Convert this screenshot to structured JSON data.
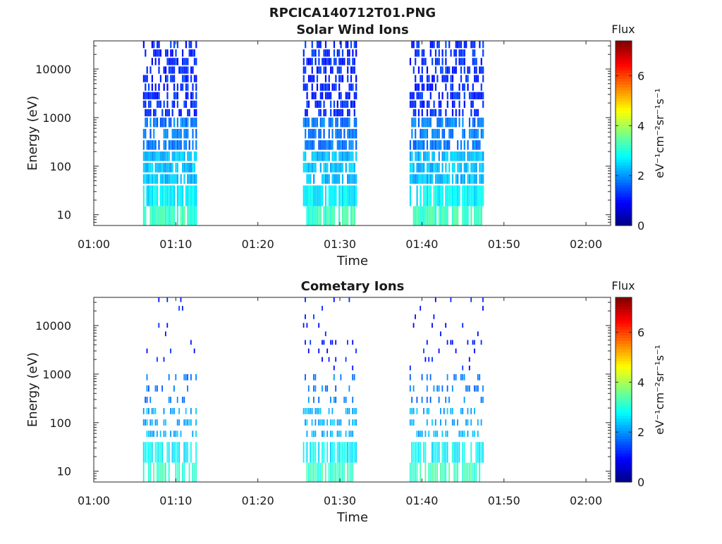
{
  "figure": {
    "title": "RPCICA140712T01.PNG"
  },
  "colors": {
    "axis": "#262626",
    "colormap": [
      "#00007f",
      "#0000ff",
      "#007fff",
      "#00ffff",
      "#7fff7f",
      "#ffff00",
      "#ff7f00",
      "#ff0000",
      "#7f0000"
    ]
  },
  "chart_data": [
    {
      "type": "heatmap",
      "title": "Solar Wind Ions",
      "xlabel": "Time",
      "ylabel": "Energy (eV)",
      "x_ticks": [
        "01:00",
        "01:10",
        "01:20",
        "01:30",
        "01:40",
        "01:50",
        "02:00"
      ],
      "y_ticks": [
        "10",
        "100",
        "1000",
        "10000"
      ],
      "y_scale": "log",
      "colorbar": {
        "title": "Flux",
        "label": "eV⁻¹cm⁻²sr⁻¹s⁻¹",
        "ticks": [
          "0",
          "2",
          "4",
          "6"
        ],
        "range": [
          0,
          7.4
        ]
      },
      "intervals": [
        {
          "start": "01:06",
          "end": "01:12.5",
          "max_energy_eV": 38000
        },
        {
          "start": "01:25.5",
          "end": "01:32",
          "max_energy_eV": 38000
        },
        {
          "start": "01:38.5",
          "end": "01:47.5",
          "max_energy_eV": 38000
        }
      ],
      "flux_by_energy_band": [
        {
          "energy_eV": [
            6,
            15
          ],
          "flux": 3.2
        },
        {
          "energy_eV": [
            15,
            40
          ],
          "flux": 2.7
        },
        {
          "energy_eV": [
            40,
            200
          ],
          "flux": 2.3
        },
        {
          "energy_eV": [
            200,
            1000
          ],
          "flux": 1.8
        },
        {
          "energy_eV": [
            1000,
            38000
          ],
          "flux": 1.2
        }
      ],
      "density": "dense"
    },
    {
      "type": "heatmap",
      "title": "Cometary Ions",
      "xlabel": "Time",
      "ylabel": "Energy (eV)",
      "x_ticks": [
        "01:00",
        "01:10",
        "01:20",
        "01:30",
        "01:40",
        "01:50",
        "02:00"
      ],
      "y_ticks": [
        "10",
        "100",
        "1000",
        "10000"
      ],
      "y_scale": "log",
      "colorbar": {
        "title": "Flux",
        "label": "eV⁻¹cm⁻²sr⁻¹s⁻¹",
        "ticks": [
          "0",
          "2",
          "4",
          "6"
        ],
        "range": [
          0,
          7.4
        ]
      },
      "intervals": [
        {
          "start": "01:06",
          "end": "01:12.5",
          "max_energy_eV": 38000
        },
        {
          "start": "01:25.5",
          "end": "01:32",
          "max_energy_eV": 38000
        },
        {
          "start": "01:38.5",
          "end": "01:47.5",
          "max_energy_eV": 38000
        }
      ],
      "flux_by_energy_band": [
        {
          "energy_eV": [
            6,
            15
          ],
          "flux": 3.2
        },
        {
          "energy_eV": [
            15,
            40
          ],
          "flux": 2.7
        },
        {
          "energy_eV": [
            40,
            200
          ],
          "flux": 2.2
        },
        {
          "energy_eV": [
            200,
            1000
          ],
          "flux": 1.8
        },
        {
          "energy_eV": [
            1000,
            38000
          ],
          "flux": 1.1
        }
      ],
      "density": "sparse"
    }
  ]
}
